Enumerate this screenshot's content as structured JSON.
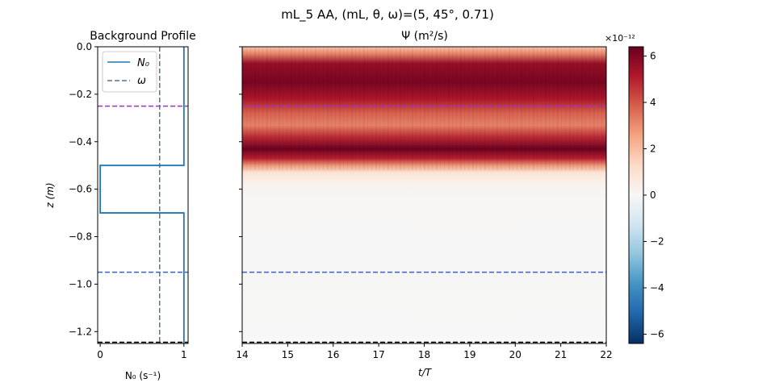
{
  "figure": {
    "suptitle": "mL_5 AA, (mL, θ, ω)=(5, 45°, 0.71)"
  },
  "chart_data": [
    {
      "type": "line",
      "title": "Background Profile",
      "xlabel": "N₀ (s⁻¹)",
      "ylabel": "z (m)",
      "xlim": [
        -0.03,
        1.05
      ],
      "ylim": [
        -1.25,
        0.0
      ],
      "xticks": [
        "0",
        "1"
      ],
      "yticks": [
        "0.0",
        "−0.2",
        "−0.4",
        "−0.6",
        "−0.8",
        "−1.0",
        "−1.2"
      ],
      "grid": false,
      "legend": {
        "placement": "top-left",
        "entries": [
          "N₀",
          "ω"
        ]
      },
      "series": [
        {
          "name": "N₀",
          "color": "#1f77b4",
          "style": "solid",
          "points": [
            [
              1.0,
              0.0
            ],
            [
              1.0,
              -0.5
            ],
            [
              0.0,
              -0.5
            ],
            [
              0.0,
              -0.7
            ],
            [
              1.0,
              -0.7
            ],
            [
              1.0,
              -1.25
            ]
          ]
        },
        {
          "name": "ω",
          "color": "#5b7391",
          "style": "dashed",
          "x": 0.71
        }
      ],
      "hlines": [
        {
          "y": -0.25,
          "color": "#9b30c8",
          "style": "dashed"
        },
        {
          "y": -0.95,
          "color": "#3a5fc8",
          "style": "dashed"
        },
        {
          "y": -1.245,
          "color": "#000000",
          "style": "dashed"
        }
      ]
    },
    {
      "type": "heatmap",
      "title": "Ψ (m²/s)",
      "xlabel": "t/T",
      "ylabel": "",
      "xlim": [
        14,
        22
      ],
      "ylim": [
        -1.25,
        0.0
      ],
      "xticks": [
        "14",
        "15",
        "16",
        "17",
        "18",
        "19",
        "20",
        "21",
        "22"
      ],
      "colormap": "RdBu_r",
      "colorbar": {
        "range": [
          -6.4,
          6.4
        ],
        "ticks": [
          "−6",
          "−4",
          "−2",
          "0",
          "2",
          "4",
          "6"
        ],
        "multiplier": "×10⁻¹²"
      },
      "vertical_profile": [
        {
          "z": 0.0,
          "value": 1.8
        },
        {
          "z": -0.03,
          "value": 3.2
        },
        {
          "z": -0.07,
          "value": 5.6
        },
        {
          "z": -0.15,
          "value": 6.1
        },
        {
          "z": -0.22,
          "value": 5.2
        },
        {
          "z": -0.28,
          "value": 3.8
        },
        {
          "z": -0.33,
          "value": 3.2
        },
        {
          "z": -0.38,
          "value": 4.8
        },
        {
          "z": -0.43,
          "value": 6.3
        },
        {
          "z": -0.47,
          "value": 5.0
        },
        {
          "z": -0.5,
          "value": 2.8
        },
        {
          "z": -0.53,
          "value": 0.9
        },
        {
          "z": -0.58,
          "value": 0.25
        },
        {
          "z": -0.65,
          "value": 0.05
        },
        {
          "z": -1.25,
          "value": 0.0
        }
      ],
      "hlines": [
        {
          "y": -0.25,
          "color": "#9b30c8",
          "style": "dashed"
        },
        {
          "y": -0.95,
          "color": "#3a5fc8",
          "style": "dashed"
        },
        {
          "y": -1.245,
          "color": "#000000",
          "style": "dashed"
        }
      ]
    }
  ]
}
